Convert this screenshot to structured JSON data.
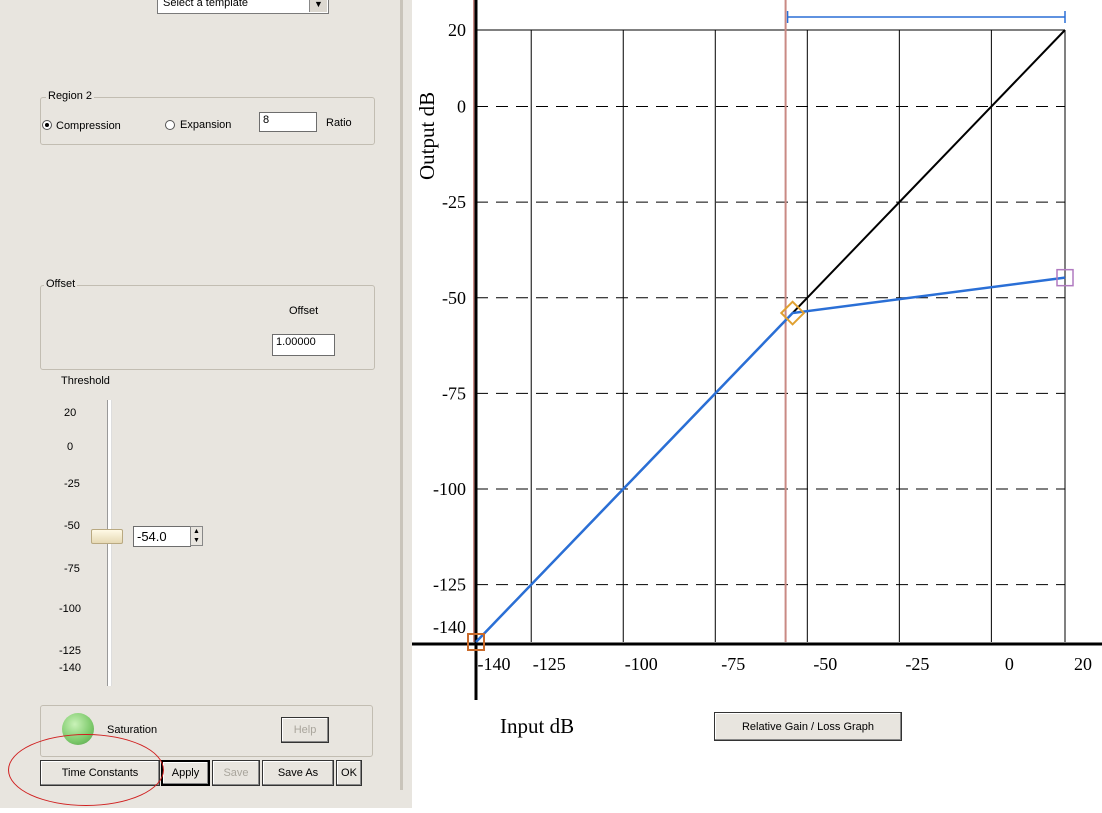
{
  "template_select": {
    "value": "Select a template"
  },
  "region2": {
    "legend": "Region 2",
    "compression_label": "Compression",
    "expansion_label": "Expansion",
    "selected": "compression",
    "ratio_value": "8",
    "ratio_label": "Ratio"
  },
  "offset": {
    "legend": "Offset",
    "label": "Offset",
    "value": "1.00000"
  },
  "threshold": {
    "label": "Threshold",
    "ticks": [
      "20",
      "0",
      "-25",
      "-50",
      "-75",
      "-100",
      "-125",
      "-140"
    ],
    "value": "-54.0"
  },
  "saturation": {
    "label": "Saturation",
    "help_label": "Help"
  },
  "buttons": {
    "time_constants": "Time Constants",
    "apply": "Apply",
    "save": "Save",
    "save_as": "Save As",
    "ok": "OK"
  },
  "graph_button": "Relative Gain / Loss Graph",
  "chart_data": {
    "type": "line",
    "xlabel": "Input dB",
    "ylabel": "Output dB",
    "x_ticks": [
      "-140",
      "-125",
      "-100",
      "-75",
      "-50",
      "-25",
      "0",
      "20"
    ],
    "y_ticks": [
      "20",
      "0",
      "-25",
      "-50",
      "-75",
      "-100",
      "-125",
      "-140"
    ],
    "xlim": [
      -140,
      20
    ],
    "ylim": [
      -140,
      20
    ],
    "grid": true,
    "threshold": -54,
    "colors": {
      "unity": "#000000",
      "response": "#2a6fd6",
      "marker": "#c96a2a",
      "threshold_line": "#c98a84"
    },
    "series": [
      {
        "x": [
          -140,
          20
        ],
        "y": [
          -140,
          20
        ]
      },
      {
        "x": [
          -140,
          -54,
          20
        ],
        "y": [
          -140,
          -54,
          -44.75
        ]
      }
    ]
  }
}
